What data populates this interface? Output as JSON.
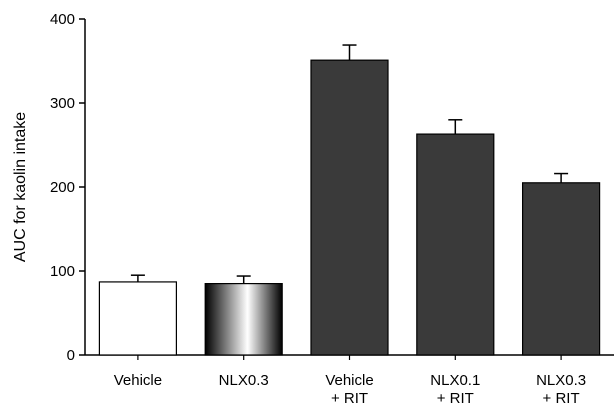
{
  "chart_data": {
    "type": "bar",
    "title": "",
    "xlabel": "",
    "ylabel": "AUC for kaolin intake",
    "ylim": [
      0,
      400
    ],
    "yticks": [
      0,
      100,
      200,
      300,
      400
    ],
    "grid": false,
    "legend": "none",
    "categories": [
      [
        "Vehicle"
      ],
      [
        "NLX0.3"
      ],
      [
        "Vehicle",
        "+ RIT"
      ],
      [
        "NLX0.1",
        "+ RIT"
      ],
      [
        "NLX0.3",
        "+ RIT"
      ]
    ],
    "values": [
      87,
      85,
      351,
      263,
      205
    ],
    "errors": [
      8,
      9,
      18,
      17,
      11
    ],
    "bar_styles": [
      "white",
      "gradient",
      "dark",
      "dark",
      "dark"
    ],
    "colors": {
      "dark": "#3a3a3a",
      "outline": "#000000",
      "white": "#ffffff"
    }
  }
}
